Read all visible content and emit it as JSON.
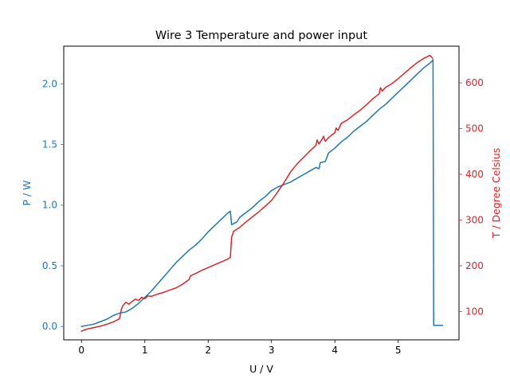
{
  "chart_data": {
    "type": "line",
    "title": "Wire 3 Temperature and power input",
    "xlabel": "U / V",
    "ylabel_left": "P / W",
    "ylabel_right": "T / Degree Celsius",
    "xlim": [
      -0.28,
      5.96
    ],
    "ylim_left": [
      -0.11,
      2.31
    ],
    "ylim_right": [
      38,
      680
    ],
    "x_ticks": [
      0,
      1,
      2,
      3,
      4,
      5
    ],
    "x_tick_labels": [
      "0",
      "1",
      "2",
      "3",
      "4",
      "5"
    ],
    "y_left_ticks": [
      0.0,
      0.5,
      1.0,
      1.5,
      2.0
    ],
    "y_left_tick_labels": [
      "0.0",
      "0.5",
      "1.0",
      "1.5",
      "2.0"
    ],
    "y_right_ticks": [
      100,
      200,
      300,
      400,
      500,
      600
    ],
    "y_right_tick_labels": [
      "100",
      "200",
      "300",
      "400",
      "500",
      "600"
    ],
    "grid": false,
    "legend": "none",
    "colors": {
      "power": "#1f77b4",
      "temperature": "#d62728",
      "axis": "#000000"
    },
    "series": [
      {
        "axis": "left",
        "color": "#1f77b4",
        "x": [
          0.0,
          0.1,
          0.2,
          0.3,
          0.4,
          0.5,
          0.6,
          0.7,
          0.8,
          0.9,
          1.0,
          1.1,
          1.2,
          1.3,
          1.4,
          1.5,
          1.6,
          1.7,
          1.8,
          1.9,
          2.0,
          2.1,
          2.2,
          2.3,
          2.35,
          2.37,
          2.45,
          2.5,
          2.6,
          2.7,
          2.8,
          2.9,
          3.0,
          3.1,
          3.2,
          3.3,
          3.4,
          3.5,
          3.6,
          3.7,
          3.75,
          3.77,
          3.85,
          3.9,
          4.0,
          4.1,
          4.2,
          4.3,
          4.4,
          4.5,
          4.6,
          4.7,
          4.8,
          4.9,
          5.0,
          5.1,
          5.2,
          5.3,
          5.4,
          5.5,
          5.54,
          5.55,
          5.56,
          5.7
        ],
        "y": [
          0.0,
          0.01,
          0.02,
          0.04,
          0.06,
          0.09,
          0.11,
          0.12,
          0.15,
          0.19,
          0.24,
          0.29,
          0.35,
          0.41,
          0.47,
          0.53,
          0.58,
          0.63,
          0.67,
          0.72,
          0.78,
          0.83,
          0.88,
          0.93,
          0.95,
          0.84,
          0.86,
          0.9,
          0.94,
          0.98,
          1.03,
          1.07,
          1.12,
          1.15,
          1.17,
          1.19,
          1.22,
          1.25,
          1.28,
          1.31,
          1.3,
          1.35,
          1.36,
          1.43,
          1.47,
          1.52,
          1.56,
          1.61,
          1.65,
          1.69,
          1.74,
          1.79,
          1.83,
          1.88,
          1.93,
          1.98,
          2.03,
          2.08,
          2.13,
          2.17,
          2.19,
          2.2,
          0.01,
          0.01
        ]
      },
      {
        "axis": "right",
        "color": "#d62728",
        "x": [
          0.0,
          0.05,
          0.1,
          0.2,
          0.3,
          0.4,
          0.5,
          0.6,
          0.63,
          0.65,
          0.7,
          0.75,
          0.8,
          0.85,
          0.9,
          0.95,
          1.0,
          1.05,
          1.1,
          1.2,
          1.3,
          1.4,
          1.5,
          1.6,
          1.7,
          1.72,
          1.8,
          1.9,
          2.0,
          2.1,
          2.2,
          2.3,
          2.35,
          2.37,
          2.4,
          2.5,
          2.6,
          2.7,
          2.8,
          2.9,
          3.0,
          3.05,
          3.1,
          3.2,
          3.3,
          3.4,
          3.5,
          3.6,
          3.7,
          3.72,
          3.75,
          3.8,
          3.82,
          3.85,
          3.9,
          4.0,
          4.02,
          4.05,
          4.1,
          4.2,
          4.3,
          4.4,
          4.5,
          4.6,
          4.7,
          4.72,
          4.75,
          4.8,
          4.9,
          5.0,
          5.1,
          5.2,
          5.3,
          5.4,
          5.5,
          5.54
        ],
        "y": [
          57,
          60,
          62,
          65,
          68,
          72,
          77,
          84,
          105,
          112,
          120,
          116,
          122,
          127,
          124,
          131,
          128,
          134,
          133,
          138,
          142,
          147,
          152,
          160,
          170,
          178,
          183,
          190,
          196,
          202,
          208,
          214,
          218,
          262,
          275,
          284,
          296,
          307,
          318,
          330,
          343,
          352,
          362,
          382,
          405,
          422,
          436,
          450,
          463,
          475,
          466,
          477,
          483,
          472,
          480,
          491,
          501,
          496,
          511,
          519,
          530,
          540,
          552,
          565,
          576,
          589,
          582,
          590,
          598,
          609,
          621,
          633,
          644,
          653,
          660,
          654
        ]
      }
    ]
  }
}
